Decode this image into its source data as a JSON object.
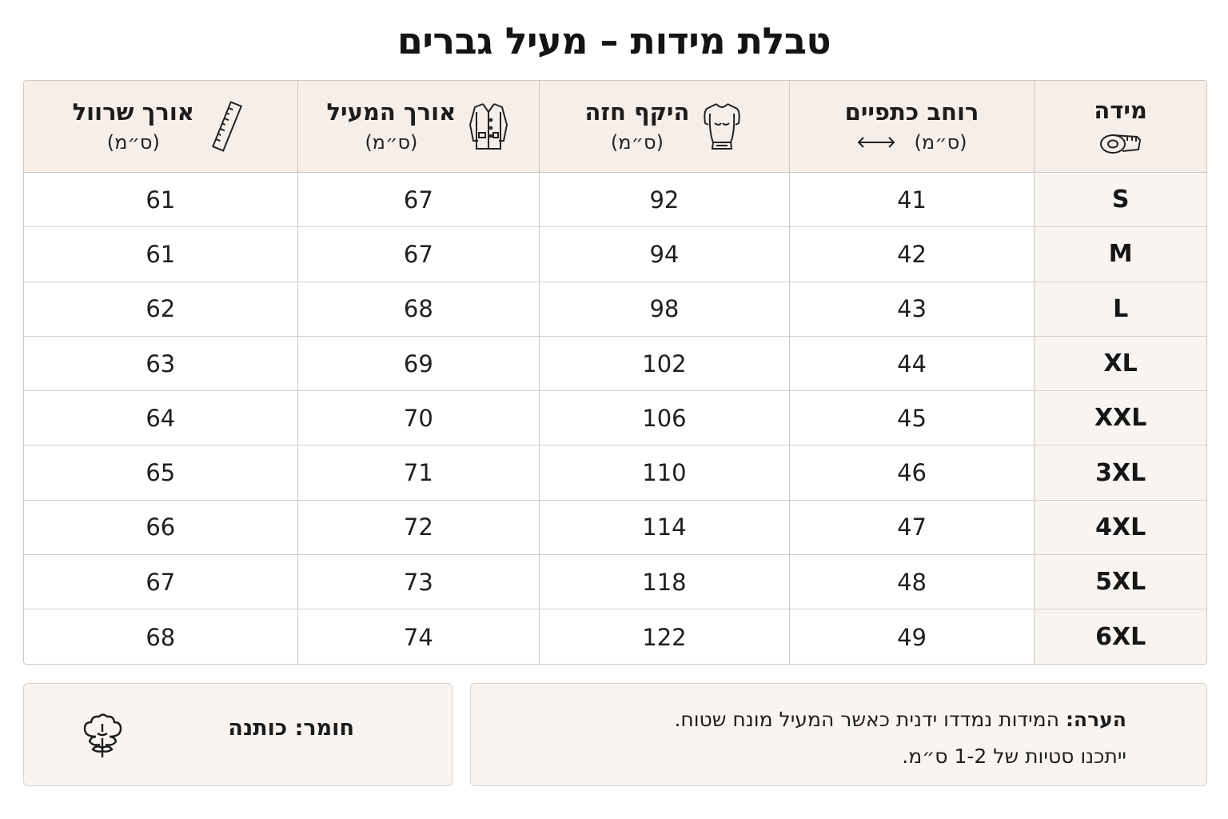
{
  "title": "טבלת מידות – מעיל גברים",
  "table": {
    "headers": {
      "size": {
        "label": "מידה",
        "icon": "tape-measure-icon"
      },
      "shoulder": {
        "label": "רוחב כתפיים",
        "unit": "(ס״מ)",
        "icon": "double-arrow-icon"
      },
      "chest": {
        "label": "היקף חזה",
        "unit": "(ס״מ)",
        "icon": "torso-icon"
      },
      "length": {
        "label": "אורך המעיל",
        "unit": "(ס״מ)",
        "icon": "coat-icon"
      },
      "sleeve": {
        "label": "אורך שרוול",
        "unit": "(ס״מ)",
        "icon": "ruler-icon"
      }
    },
    "rows": [
      {
        "size": "S",
        "shoulder": "41",
        "chest": "92",
        "length": "67",
        "sleeve": "61"
      },
      {
        "size": "M",
        "shoulder": "42",
        "chest": "94",
        "length": "67",
        "sleeve": "61"
      },
      {
        "size": "L",
        "shoulder": "43",
        "chest": "98",
        "length": "68",
        "sleeve": "62"
      },
      {
        "size": "XL",
        "shoulder": "44",
        "chest": "102",
        "length": "69",
        "sleeve": "63"
      },
      {
        "size": "XXL",
        "shoulder": "45",
        "chest": "106",
        "length": "70",
        "sleeve": "64"
      },
      {
        "size": "3XL",
        "shoulder": "46",
        "chest": "110",
        "length": "71",
        "sleeve": "65"
      },
      {
        "size": "4XL",
        "shoulder": "47",
        "chest": "114",
        "length": "72",
        "sleeve": "66"
      },
      {
        "size": "5XL",
        "shoulder": "48",
        "chest": "118",
        "length": "73",
        "sleeve": "67"
      },
      {
        "size": "6XL",
        "shoulder": "49",
        "chest": "122",
        "length": "74",
        "sleeve": "68"
      }
    ]
  },
  "note": {
    "label": "הערה:",
    "line1": "המידות נמדדו ידנית כאשר המעיל מונח שטוח.",
    "line2": "ייתכנו סטיות של 1-2 ס״מ."
  },
  "material": {
    "text": "חומר: כותנה",
    "icon": "cotton-icon"
  },
  "colors": {
    "header_bg": "#f6efe9",
    "border": "#cfc8c0",
    "size_col_bg": "#f7f4f1",
    "footer_bg": "#f8f4f1"
  }
}
